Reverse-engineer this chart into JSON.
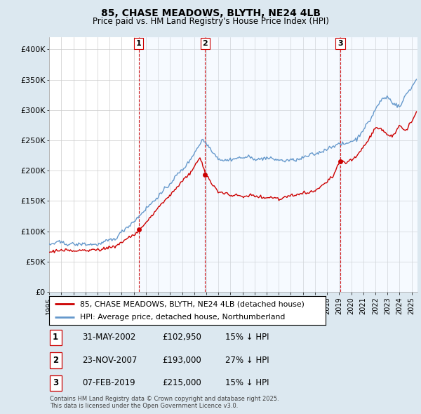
{
  "title": "85, CHASE MEADOWS, BLYTH, NE24 4LB",
  "subtitle": "Price paid vs. HM Land Registry's House Price Index (HPI)",
  "xlim_start": 1995.0,
  "xlim_end": 2025.5,
  "ylim": [
    0,
    420000
  ],
  "yticks": [
    0,
    50000,
    100000,
    150000,
    200000,
    250000,
    300000,
    350000,
    400000
  ],
  "ytick_labels": [
    "£0",
    "£50K",
    "£100K",
    "£150K",
    "£200K",
    "£250K",
    "£300K",
    "£350K",
    "£400K"
  ],
  "sale_dates": [
    2002.413,
    2007.896,
    2019.096
  ],
  "sale_prices": [
    102950,
    193000,
    215000
  ],
  "sale_labels": [
    "1",
    "2",
    "3"
  ],
  "vline_color": "#cc0000",
  "hpi_color": "#6699cc",
  "sale_color": "#cc0000",
  "shade_color": "#ddeeff",
  "background_color": "#dce8f0",
  "plot_bg_color": "#ffffff",
  "legend_items": [
    {
      "label": "85, CHASE MEADOWS, BLYTH, NE24 4LB (detached house)",
      "color": "#cc0000"
    },
    {
      "label": "HPI: Average price, detached house, Northumberland",
      "color": "#6699cc"
    }
  ],
  "table_rows": [
    {
      "num": "1",
      "date": "31-MAY-2002",
      "price": "£102,950",
      "hpi": "15% ↓ HPI"
    },
    {
      "num": "2",
      "date": "23-NOV-2007",
      "price": "£193,000",
      "hpi": "27% ↓ HPI"
    },
    {
      "num": "3",
      "date": "07-FEB-2019",
      "price": "£215,000",
      "hpi": "15% ↓ HPI"
    }
  ],
  "footnote": "Contains HM Land Registry data © Crown copyright and database right 2025.\nThis data is licensed under the Open Government Licence v3.0."
}
